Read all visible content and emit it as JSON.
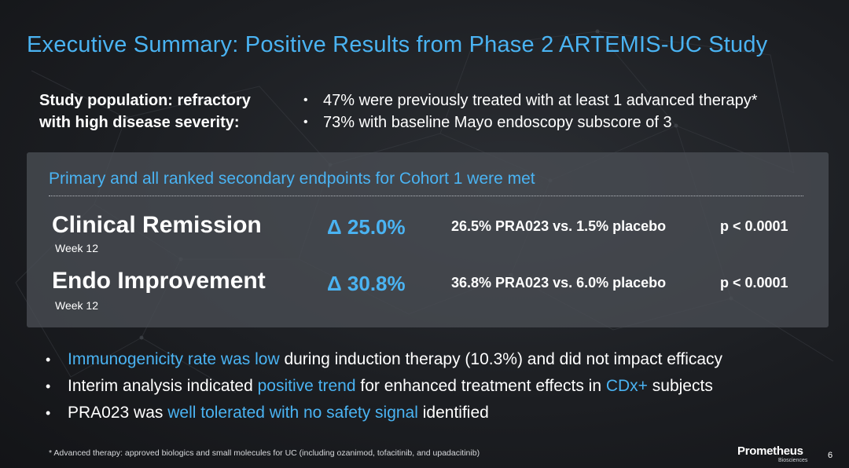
{
  "colors": {
    "accent": "#4ab3f2",
    "text": "#ffffff",
    "panel": "#4a4e54",
    "background": "#1c1e22"
  },
  "title": "Executive Summary: Positive Results from Phase 2 ARTEMIS-UC Study",
  "population": {
    "label_line1": "Study population: refractory",
    "label_line2": "with high disease severity:",
    "bullets": [
      "47% were previously treated with at least 1 advanced therapy*",
      "73% with baseline Mayo endoscopy subscore of 3"
    ]
  },
  "panel": {
    "title": "Primary and all ranked secondary endpoints for Cohort 1 were met",
    "endpoints": [
      {
        "name": "Clinical Remission",
        "timepoint": "Week 12",
        "delta": "Δ 25.0%",
        "comparison": "26.5% PRA023 vs. 1.5% placebo",
        "p_value": "p < 0.0001"
      },
      {
        "name": "Endo Improvement",
        "timepoint": "Week 12",
        "delta": "Δ 30.8%",
        "comparison": "36.8% PRA023 vs. 6.0% placebo",
        "p_value": "p < 0.0001"
      }
    ]
  },
  "findings": [
    {
      "highlight": "Immunogenicity rate was low",
      "text": " during induction therapy (10.3%) and did not impact efficacy"
    },
    {
      "pre": "Interim analysis indicated ",
      "highlight": "positive trend",
      "mid": " for enhanced treatment effects in ",
      "highlight2": "CDx+",
      "post": " subjects"
    },
    {
      "pre": "PRA023 was ",
      "highlight": "well tolerated with no safety signal",
      "post": " identified"
    }
  ],
  "footnote": "* Advanced therapy: approved biologics and small molecules for UC (including ozanimod, tofacitinib, and upadacitinib)",
  "logo": {
    "name": "Prometheus",
    "sub": "Biosciences"
  },
  "page_number": "6"
}
